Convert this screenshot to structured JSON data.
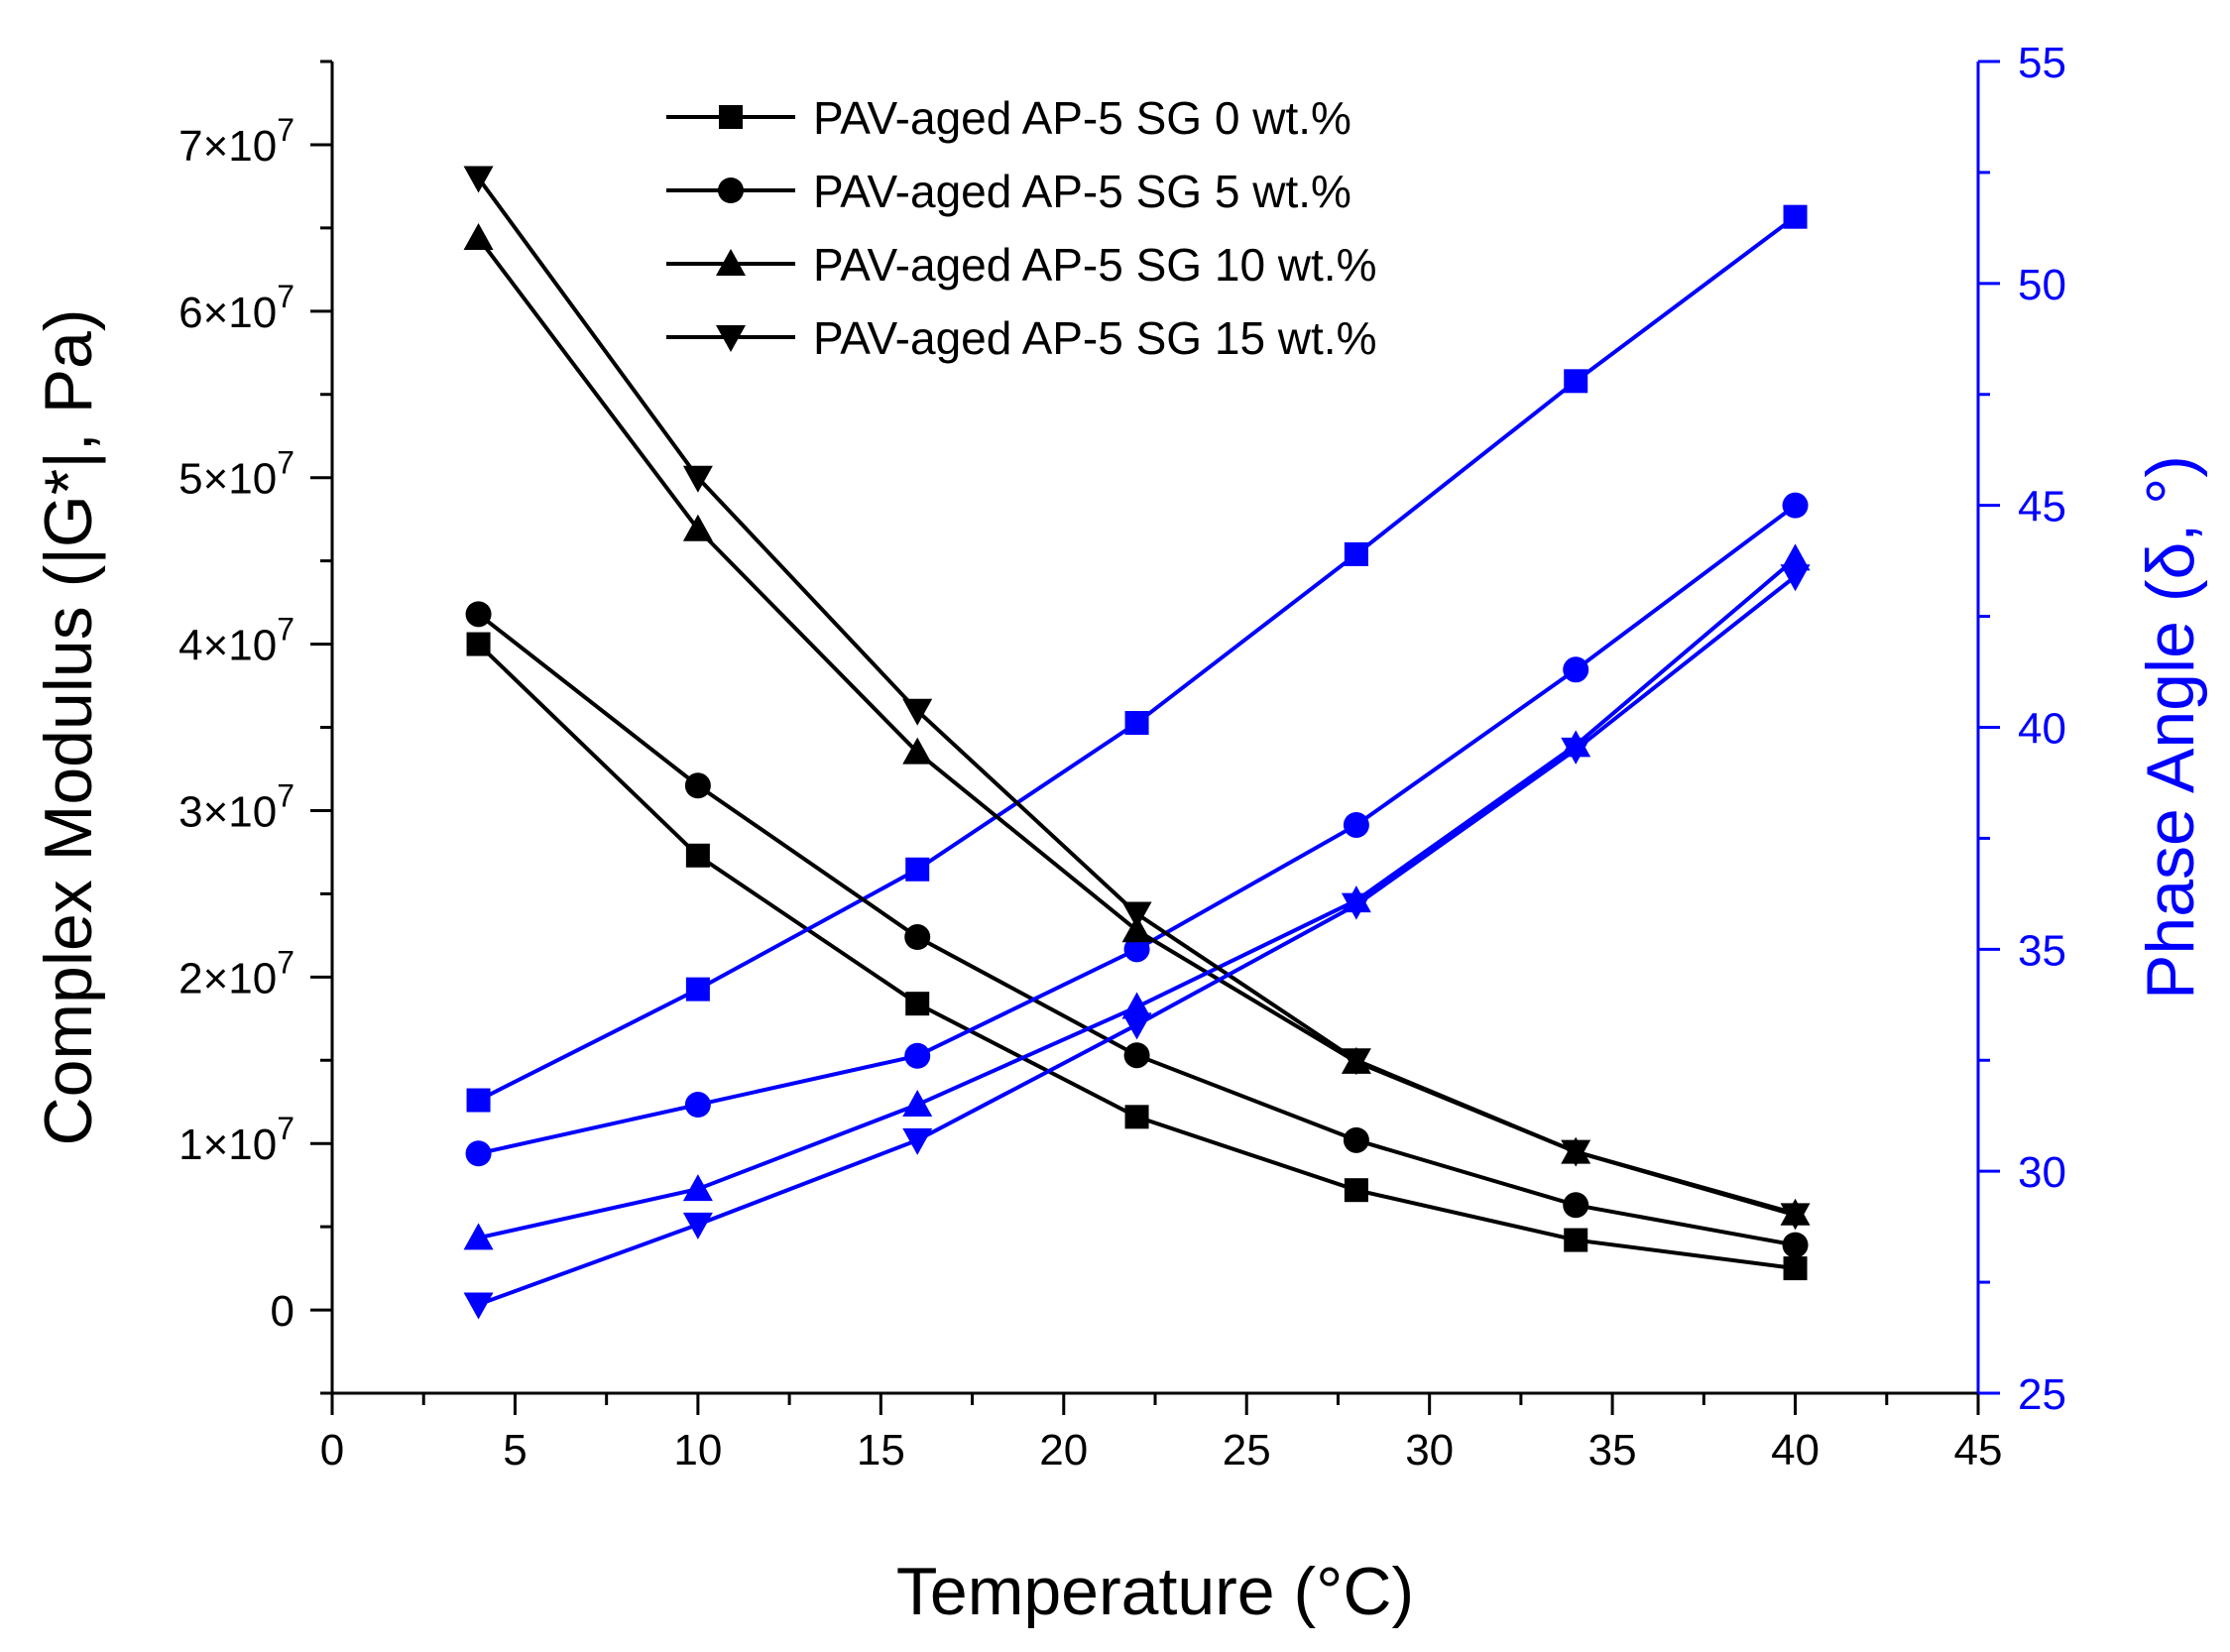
{
  "chart_data": {
    "type": "line",
    "title": "",
    "xlabel": "Temperature (°C)",
    "ylabel": "Complex Modulus (|G*|, Pa)",
    "y2label": "Phase Angle (δ, °)",
    "xlim": [
      0,
      45
    ],
    "ylim": [
      -5000000,
      75000000
    ],
    "y2lim": [
      25,
      55
    ],
    "x": [
      4,
      10,
      16,
      22,
      28,
      34,
      40
    ],
    "x_ticks": [
      0,
      5,
      10,
      15,
      20,
      25,
      30,
      35,
      40,
      45
    ],
    "y_ticks": [
      0,
      10000000,
      20000000,
      30000000,
      40000000,
      50000000,
      60000000,
      70000000
    ],
    "y_tick_labels": [
      "0",
      "1×10",
      "2×10",
      "3×10",
      "4×10",
      "5×10",
      "6×10",
      "7×10"
    ],
    "y_tick_exponent": "7",
    "y2_ticks": [
      25,
      30,
      35,
      40,
      45,
      50,
      55
    ],
    "legend_position": "top-center",
    "colors": {
      "modulus": "#000000",
      "phase": "#0000ff"
    },
    "series": [
      {
        "name": "PAV-aged AP-5 SG 0 wt.%",
        "marker": "square",
        "modulus": [
          40000000,
          27300000,
          18400000,
          11600000,
          7200000,
          4200000,
          2500000
        ],
        "phase_angle": [
          31.6,
          34.1,
          36.8,
          40.1,
          43.9,
          47.8,
          51.5
        ]
      },
      {
        "name": "PAV-aged AP-5 SG 5 wt.%",
        "marker": "circle",
        "modulus": [
          41800000,
          31500000,
          22400000,
          15300000,
          10200000,
          6300000,
          3900000
        ],
        "phase_angle": [
          30.4,
          31.5,
          32.6,
          35.0,
          37.8,
          41.3,
          45.0
        ]
      },
      {
        "name": "PAV-aged AP-5 SG 10 wt.%",
        "marker": "triangle-up",
        "modulus": [
          64400000,
          46900000,
          33500000,
          22800000,
          14900000,
          9500000,
          5800000
        ],
        "phase_angle": [
          28.5,
          29.6,
          31.5,
          33.7,
          36.1,
          39.6,
          43.8
        ]
      },
      {
        "name": "PAV-aged AP-5 SG 15 wt.%",
        "marker": "triangle-down",
        "modulus": [
          68000000,
          50000000,
          36000000,
          23800000,
          15000000,
          9500000,
          5700000
        ],
        "phase_angle": [
          27.0,
          28.8,
          30.7,
          33.3,
          36.0,
          39.5,
          43.4
        ]
      }
    ]
  }
}
